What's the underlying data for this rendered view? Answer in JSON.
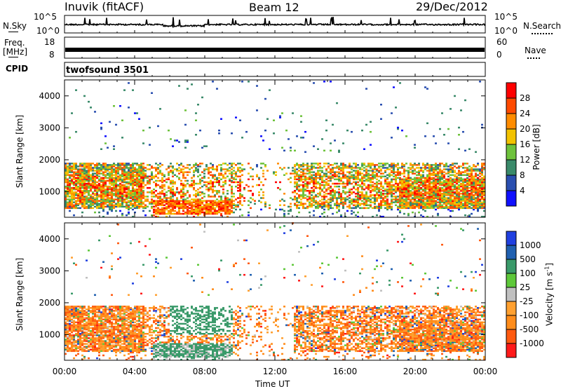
{
  "header": {
    "station": "Inuvik (fitACF)",
    "beam": "Beam 12",
    "date": "29/Dec/2012"
  },
  "panels": {
    "noise": {
      "left_label": "N.Sky",
      "right_label": "N.Search",
      "left_ticks": [
        "10^5",
        "10^0"
      ],
      "right_ticks": [
        "10^5",
        "10^0"
      ]
    },
    "freq": {
      "left_label": "Freq.",
      "left_unit": "[MHz]",
      "left_ticks": [
        "18",
        "8"
      ],
      "right_label": "Nave",
      "right_ticks": [
        "60",
        "0"
      ]
    },
    "cpid": {
      "label": "CPID",
      "value": "twofsound 3501"
    }
  },
  "colors": {
    "power_scale": [
      "#1010ff",
      "#2a4fb0",
      "#3a8a6a",
      "#6ec23c",
      "#f2c200",
      "#ff8c00",
      "#ff4a00",
      "#ff0000"
    ],
    "velocity_scale": [
      "#ff1a1a",
      "#ff5a10",
      "#ff8c1a",
      "#ffa030",
      "#c0c0c0",
      "#5ec83a",
      "#3a9a6a",
      "#2060b0",
      "#2040e0"
    ]
  },
  "chart_data": [
    {
      "type": "heatmap",
      "name": "power",
      "ylabel": "Slant Range [km]",
      "y_ticks": [
        1000,
        2000,
        3000,
        4000
      ],
      "ylim": [
        200,
        4500
      ],
      "xlim": [
        0,
        24
      ],
      "colorbar": {
        "label": "Power [dB]",
        "ticks": [
          "4",
          "8",
          "12",
          "16",
          "20",
          "24",
          "28"
        ],
        "range": [
          0,
          32
        ]
      },
      "features": [
        {
          "label": "main band",
          "t_start": 0,
          "t_end": 24,
          "range_km": [
            500,
            2000
          ],
          "peak_db": 30
        },
        {
          "label": "sporadic high-range scatter",
          "range_km": [
            2500,
            4400
          ]
        }
      ]
    },
    {
      "type": "heatmap",
      "name": "velocity",
      "ylabel": "Slant Range [km]",
      "y_ticks": [
        1000,
        2000,
        3000,
        4000
      ],
      "ylim": [
        200,
        4500
      ],
      "xlim": [
        0,
        24
      ],
      "xlabel": "Time UT",
      "x_ticks": [
        "00:00",
        "04:00",
        "08:00",
        "12:00",
        "16:00",
        "20:00",
        "00:00"
      ],
      "colorbar": {
        "label": "Velocity [m s-1]",
        "ticks": [
          "1000",
          "500",
          "100",
          "25",
          "-25",
          "-100",
          "-500",
          "-1000"
        ],
        "range": [
          -1000,
          1000
        ]
      }
    }
  ]
}
